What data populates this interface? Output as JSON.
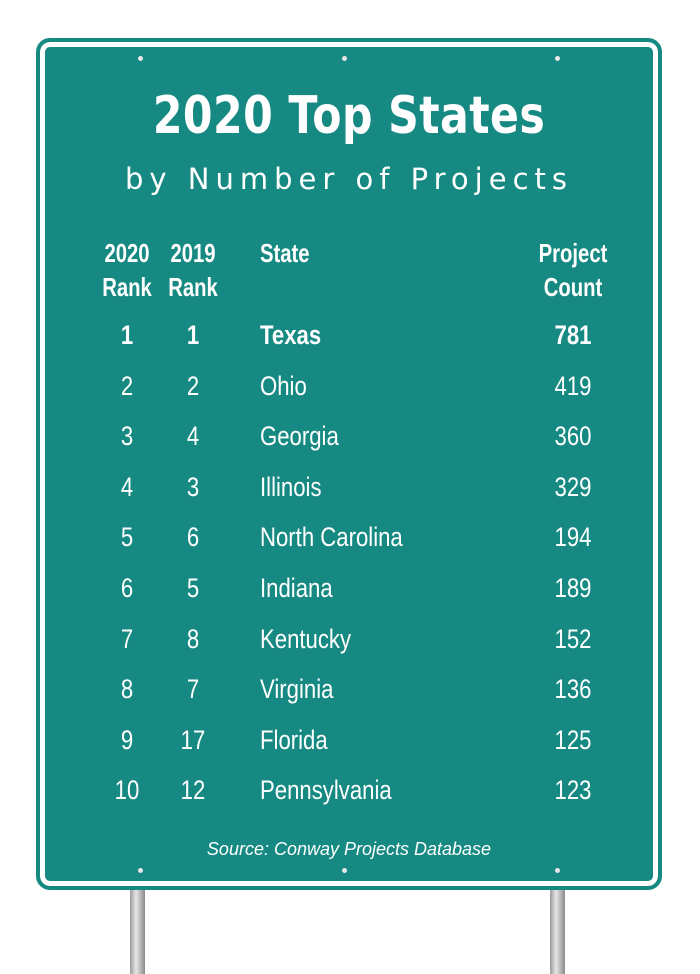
{
  "sign": {
    "title": "2020 Top States",
    "subtitle": "by Number of Projects",
    "headers": {
      "rank2020": [
        "2020",
        "Rank"
      ],
      "rank2019": [
        "2019",
        "Rank"
      ],
      "state": "State",
      "count": [
        "Project",
        "Count"
      ]
    },
    "rows": [
      {
        "rank2020": "1",
        "rank2019": "1",
        "state": "Texas",
        "count": "781"
      },
      {
        "rank2020": "2",
        "rank2019": "2",
        "state": "Ohio",
        "count": "419"
      },
      {
        "rank2020": "3",
        "rank2019": "4",
        "state": "Georgia",
        "count": "360"
      },
      {
        "rank2020": "4",
        "rank2019": "3",
        "state": "Illinois",
        "count": "329"
      },
      {
        "rank2020": "5",
        "rank2019": "6",
        "state": "North Carolina",
        "count": "194"
      },
      {
        "rank2020": "6",
        "rank2019": "5",
        "state": "Indiana",
        "count": "189"
      },
      {
        "rank2020": "7",
        "rank2019": "8",
        "state": "Kentucky",
        "count": "152"
      },
      {
        "rank2020": "8",
        "rank2019": "7",
        "state": "Virginia",
        "count": "136"
      },
      {
        "rank2020": "9",
        "rank2019": "17",
        "state": "Florida",
        "count": "125"
      },
      {
        "rank2020": "10",
        "rank2019": "12",
        "state": "Pennsylvania",
        "count": "123"
      }
    ],
    "source": "Source: Conway Projects Database",
    "color": "#168a82"
  }
}
